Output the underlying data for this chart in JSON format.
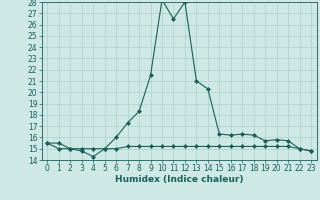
{
  "title": "",
  "xlabel": "Humidex (Indice chaleur)",
  "bg_color": "#cde8e5",
  "line_color": "#1a5f5a",
  "grid_color": "#aed0cc",
  "xlim": [
    -0.5,
    23.5
  ],
  "ylim": [
    14,
    28
  ],
  "xticks": [
    0,
    1,
    2,
    3,
    4,
    5,
    6,
    7,
    8,
    9,
    10,
    11,
    12,
    13,
    14,
    15,
    16,
    17,
    18,
    19,
    20,
    21,
    22,
    23
  ],
  "yticks": [
    14,
    15,
    16,
    17,
    18,
    19,
    20,
    21,
    22,
    23,
    24,
    25,
    26,
    27,
    28
  ],
  "line1_x": [
    0,
    1,
    2,
    3,
    4,
    5,
    6,
    7,
    8,
    9,
    10,
    11,
    12,
    13,
    14,
    15,
    16,
    17,
    18,
    19,
    20,
    21,
    22,
    23
  ],
  "line1_y": [
    15.5,
    15.5,
    15.0,
    14.8,
    14.3,
    15.0,
    16.0,
    17.3,
    18.3,
    21.5,
    28.2,
    26.5,
    28.0,
    21.0,
    20.3,
    16.3,
    16.2,
    16.3,
    16.2,
    15.7,
    15.8,
    15.7,
    15.0,
    14.8
  ],
  "line2_x": [
    0,
    1,
    2,
    3,
    4,
    5,
    6,
    7,
    8,
    9,
    10,
    11,
    12,
    13,
    14,
    15,
    16,
    17,
    18,
    19,
    20,
    21,
    22,
    23
  ],
  "line2_y": [
    15.5,
    15.0,
    15.0,
    15.0,
    15.0,
    15.0,
    15.0,
    15.2,
    15.2,
    15.2,
    15.2,
    15.2,
    15.2,
    15.2,
    15.2,
    15.2,
    15.2,
    15.2,
    15.2,
    15.2,
    15.2,
    15.2,
    15.0,
    14.8
  ],
  "tick_fontsize": 5.5,
  "xlabel_fontsize": 6.5,
  "marker": "D",
  "markersize": 2.0,
  "linewidth": 0.8
}
